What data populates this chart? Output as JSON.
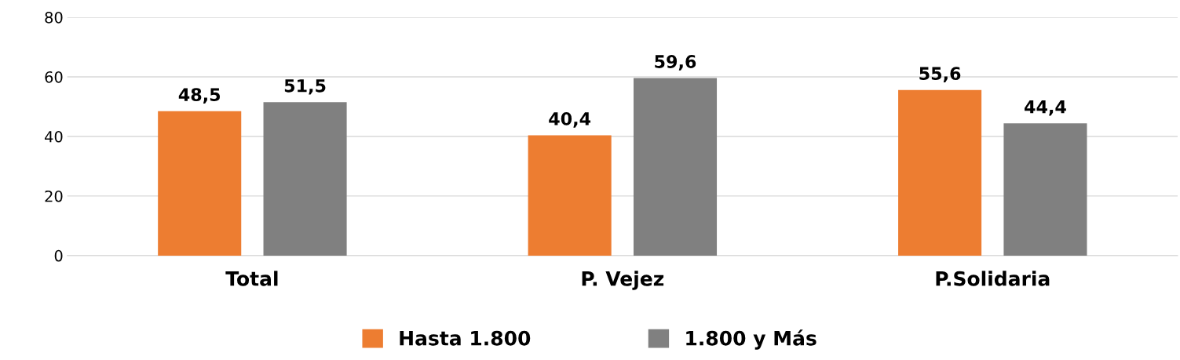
{
  "chart_data": {
    "type": "bar",
    "categories": [
      "Total",
      "P. Vejez",
      "P.Solidaria"
    ],
    "series": [
      {
        "name": "Hasta 1.800",
        "color": "#ed7d31",
        "values": [
          48.5,
          40.4,
          55.6
        ],
        "value_labels": [
          "48,5",
          "40,4",
          "55,6"
        ]
      },
      {
        "name": "1.800 y Más",
        "color": "#808080",
        "values": [
          51.5,
          59.6,
          44.4
        ],
        "value_labels": [
          "51,5",
          "59,6",
          "44,4"
        ]
      }
    ],
    "ylim": [
      0,
      80
    ],
    "yticks": [
      0,
      20,
      40,
      60,
      80
    ],
    "grid": "y",
    "legend": "bottom"
  }
}
